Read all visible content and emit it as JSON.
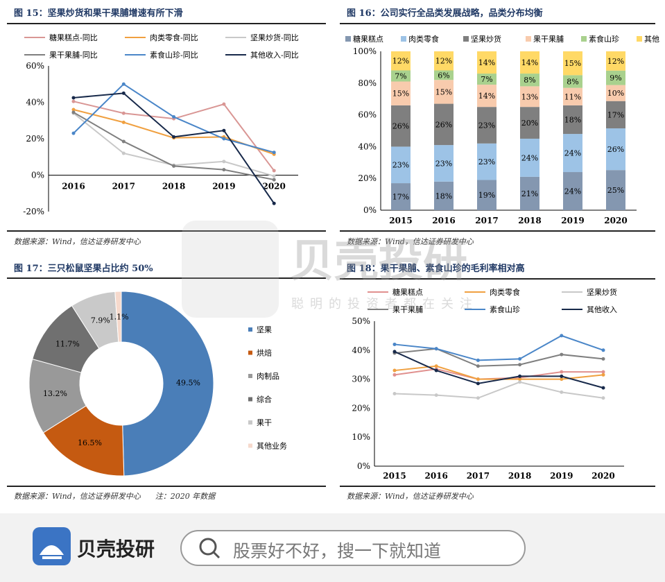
{
  "chart_data": [
    {
      "type": "line",
      "title": "图 15：坚果炒货和果干果脯增速有所下滑",
      "categories": [
        "2016",
        "2017",
        "2018",
        "2019",
        "2020"
      ],
      "ylim": [
        -20,
        60
      ],
      "yticks": [
        "-20%",
        "0%",
        "20%",
        "40%",
        "60%"
      ],
      "legend": "top",
      "series": [
        {
          "name": "糖果糕点-同比",
          "color": "#d99694",
          "values": [
            40.5,
            34,
            31,
            39,
            2.5
          ]
        },
        {
          "name": "肉类零食-同比",
          "color": "#f0a040",
          "values": [
            36,
            29,
            20.5,
            21,
            11.5
          ]
        },
        {
          "name": "坚果炒货-同比",
          "color": "#c8c8c8",
          "values": [
            34,
            12,
            5.5,
            7.5,
            -0.5
          ]
        },
        {
          "name": "果干果脯-同比",
          "color": "#7f7f7f",
          "values": [
            34.5,
            18.5,
            5,
            3,
            -2.5
          ]
        },
        {
          "name": "素食山珍-同比",
          "color": "#4a86c8",
          "values": [
            23,
            50,
            32,
            20,
            12.5
          ]
        },
        {
          "name": "其他收入-同比",
          "color": "#17294a",
          "values": [
            42.5,
            45,
            21,
            24.5,
            -15.5
          ]
        }
      ],
      "source": "数据来源：Wind，信达证券研发中心"
    },
    {
      "type": "bar",
      "stacked": true,
      "title": "图 16：公司实行全品类发展战略，品类分布均衡",
      "categories": [
        "2015",
        "2016",
        "2017",
        "2018",
        "2019",
        "2020"
      ],
      "ylim": [
        0,
        100
      ],
      "yticks": [
        "0%",
        "20%",
        "40%",
        "60%",
        "80%",
        "100%"
      ],
      "legend": "top",
      "series": [
        {
          "name": "糖果糕点",
          "color": "#8497b0",
          "values": [
            17,
            18,
            19,
            21,
            24,
            25
          ]
        },
        {
          "name": "肉类零食",
          "color": "#9dc3e6",
          "values": [
            23,
            23,
            23,
            24,
            24,
            26
          ]
        },
        {
          "name": "坚果炒货",
          "color": "#7f7f7f",
          "values": [
            26,
            26,
            23,
            20,
            18,
            17
          ]
        },
        {
          "name": "果干果脯",
          "color": "#f8cbad",
          "values": [
            15,
            15,
            14,
            13,
            11,
            10
          ]
        },
        {
          "name": "素食山珍",
          "color": "#a9d18e",
          "values": [
            7,
            6,
            7,
            8,
            8,
            9
          ]
        },
        {
          "name": "其他",
          "color": "#ffd966",
          "values": [
            12,
            12,
            14,
            14,
            15,
            12
          ]
        }
      ],
      "source": "数据来源：Wind，信达证券研发中心"
    },
    {
      "type": "pie",
      "donut": true,
      "title": "图 17：三只松鼠坚果占比约 50%",
      "legend": "right",
      "slices": [
        {
          "name": "坚果",
          "value": 49.5,
          "label": "49.5%",
          "color": "#4a7eb8"
        },
        {
          "name": "烘焙",
          "value": 16.5,
          "label": "16.5%",
          "color": "#c55a11"
        },
        {
          "name": "肉制品",
          "value": 13.2,
          "label": "13.2%",
          "color": "#999999"
        },
        {
          "name": "综合",
          "value": 11.7,
          "label": "11.7%",
          "color": "#707070"
        },
        {
          "name": "果干",
          "value": 7.9,
          "label": "7.9%",
          "color": "#c9c9c9"
        },
        {
          "name": "其他业务",
          "value": 1.1,
          "label": "1.1%",
          "color": "#f6d9cc"
        }
      ],
      "source": "数据来源：Wind，信达证券研发中心      注：2020 年数据"
    },
    {
      "type": "line",
      "title": "图 18：果干果脯、素食山珍的毛利率相对高",
      "categories": [
        "2015",
        "2016",
        "2017",
        "2018",
        "2019",
        "2020"
      ],
      "ylim": [
        0,
        50
      ],
      "yticks": [
        "0%",
        "10%",
        "20%",
        "30%",
        "40%",
        "50%"
      ],
      "legend": "top",
      "series": [
        {
          "name": "糖果糕点",
          "color": "#e0908e",
          "values": [
            31.5,
            33.5,
            30,
            30.5,
            32.5,
            32.5
          ]
        },
        {
          "name": "肉类零食",
          "color": "#f0a040",
          "values": [
            33,
            34.5,
            30,
            30,
            30,
            31.5
          ]
        },
        {
          "name": "坚果炒货",
          "color": "#c8c8c8",
          "values": [
            25,
            24.5,
            23.5,
            29,
            25.5,
            23.5
          ]
        },
        {
          "name": "果干果脯",
          "color": "#7f7f7f",
          "values": [
            39,
            40.5,
            34.5,
            35,
            38.5,
            37
          ]
        },
        {
          "name": "素食山珍",
          "color": "#4a86c8",
          "values": [
            42,
            40.5,
            36.5,
            37,
            45,
            40
          ]
        },
        {
          "name": "其他收入",
          "color": "#17294a",
          "values": [
            39.5,
            33,
            28.5,
            31,
            31,
            27
          ]
        }
      ],
      "source": "数据来源：Wind，信达证券研发中心"
    }
  ],
  "watermark": {
    "brand": "贝壳投研",
    "slogan": "聪明的投资者都在关注"
  },
  "footer": {
    "brand": "贝壳投研",
    "search_placeholder": "股票好不好，搜一下就知道"
  }
}
